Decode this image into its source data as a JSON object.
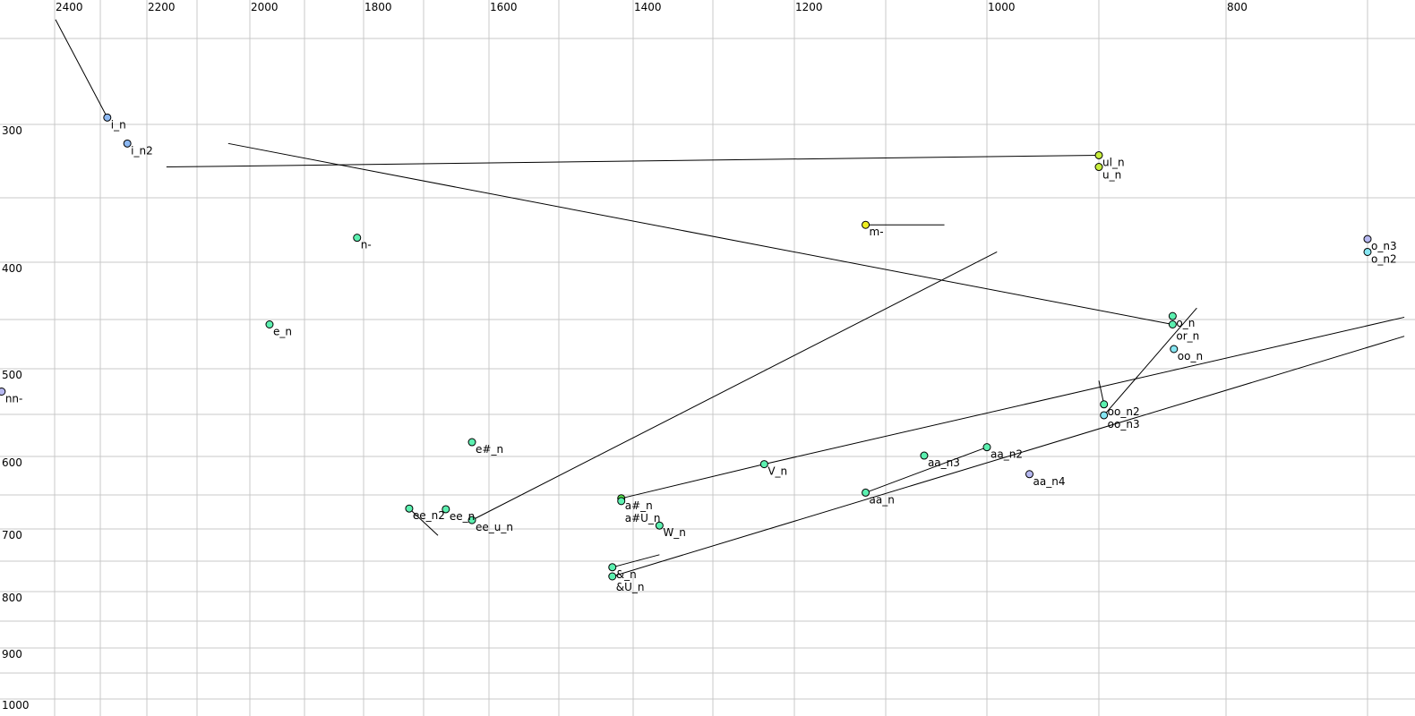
{
  "chart_data": {
    "type": "scatter",
    "title": "",
    "xlabel": "",
    "ylabel": "",
    "x_axis": {
      "position": "top",
      "reversed": true,
      "scale": "nonlinear (auditory)",
      "range": [
        2530,
        680
      ],
      "grid_step": 100,
      "tick_labels": [
        2400,
        2200,
        2000,
        1800,
        1600,
        1400,
        1200,
        1000,
        800
      ]
    },
    "y_axis": {
      "position": "left",
      "reversed": true,
      "scale": "nonlinear (auditory)",
      "range": [
        240,
        1010
      ],
      "grid_step": 50,
      "tick_labels": [
        300,
        400,
        500,
        600,
        700,
        800,
        900,
        1000
      ]
    },
    "grid": true,
    "legend": "none",
    "colors": {
      "blue": "#8cb8f2",
      "lime": "#c8ee3c",
      "yellow": "#eeee22",
      "mint": "#5cf0b0",
      "green": "#58e84a",
      "cyan": "#86e6f2",
      "lavender": "#b6b8f0"
    },
    "points": [
      {
        "label": "i_n",
        "f2": 2285,
        "f1": 296,
        "color": "blue",
        "to": [
          2398,
          239
        ]
      },
      {
        "label": "i_n2",
        "f2": 2242,
        "f1": 313,
        "color": "blue"
      },
      {
        "label": "ul_n",
        "f2": 900,
        "f1": 321,
        "color": "lime",
        "to": [
          2161,
          329
        ]
      },
      {
        "label": "u_n",
        "f2": 900,
        "f1": 329,
        "color": "lime"
      },
      {
        "label": "m-",
        "f2": 1122,
        "f1": 371,
        "color": "yellow",
        "to": [
          1042,
          371
        ]
      },
      {
        "label": "n-",
        "f2": 1811,
        "f1": 381,
        "color": "mint"
      },
      {
        "label": "e_n",
        "f2": 1964,
        "f1": 455,
        "color": "mint"
      },
      {
        "label": "nn-",
        "f2": 2516,
        "f1": 525,
        "color": "lavender"
      },
      {
        "label": "e#_n",
        "f2": 1626,
        "f1": 583,
        "color": "mint"
      },
      {
        "label": "ee_n2",
        "f2": 1724,
        "f1": 670,
        "color": "mint",
        "to": [
          1678,
          710
        ]
      },
      {
        "label": "ee_n",
        "f2": 1666,
        "f1": 671,
        "color": "mint"
      },
      {
        "label": "ee_u_n",
        "f2": 1626,
        "f1": 687,
        "color": "mint",
        "to": [
          991,
          392
        ]
      },
      {
        "label": "a#_n",
        "f2": 1416,
        "f1": 655,
        "color": "green",
        "to": [
          1237,
          610
        ]
      },
      {
        "label": "a#U_n",
        "f2": 1416,
        "f1": 659,
        "color": "mint"
      },
      {
        "label": "V_n",
        "f2": 1237,
        "f1": 610,
        "color": "mint",
        "to": [
          674,
          448
        ]
      },
      {
        "label": "W_n",
        "f2": 1367,
        "f1": 695,
        "color": "mint"
      },
      {
        "label": "&_n",
        "f2": 1428,
        "f1": 760,
        "color": "mint",
        "to": [
          1367,
          740
        ]
      },
      {
        "label": "&U_n",
        "f2": 1428,
        "f1": 775,
        "color": "mint",
        "to": [
          674,
          467
        ]
      },
      {
        "label": "aa_n",
        "f2": 1122,
        "f1": 647,
        "color": "mint",
        "to": [
          1000,
          589
        ]
      },
      {
        "label": "aa_n3",
        "f2": 1062,
        "f1": 599,
        "color": "mint"
      },
      {
        "label": "aa_n2",
        "f2": 1000,
        "f1": 589,
        "color": "mint"
      },
      {
        "label": "aa_n4",
        "f2": 962,
        "f1": 623,
        "color": "lavender"
      },
      {
        "label": "o_n",
        "f2": 842,
        "f1": 447,
        "color": "mint"
      },
      {
        "label": "or_n",
        "f2": 842,
        "f1": 455,
        "color": "mint",
        "to": [
          2041,
          313
        ]
      },
      {
        "label": "oo_n",
        "f2": 841,
        "f1": 480,
        "color": "cyan"
      },
      {
        "label": "oo_n2",
        "f2": 896,
        "f1": 539,
        "color": "mint",
        "to": [
          900,
          513
        ]
      },
      {
        "label": "oo_n3",
        "f2": 896,
        "f1": 551,
        "color": "cyan",
        "to": [
          823,
          440
        ]
      },
      {
        "label": "o_n3",
        "f2": 700,
        "f1": 382,
        "color": "lavender"
      },
      {
        "label": "o_n2",
        "f2": 700,
        "f1": 392,
        "color": "cyan"
      }
    ]
  }
}
